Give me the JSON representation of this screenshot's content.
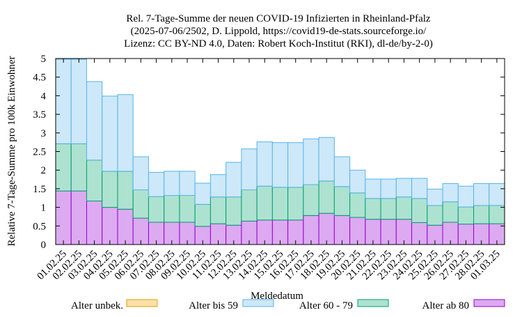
{
  "chart_data": {
    "type": "bar",
    "stacked": true,
    "title": [
      "Rel. 7-Tage-Summe der neuen COVID-19 Infizierten in Rheinland-Pfalz",
      "(2025-07-06/2502, D. Lippold, https://covid19-de-stats.sourceforge.io/",
      "Lizenz: CC BY-ND 4.0, Daten: Robert Koch-Institut (RKI), dl-de/by-2-0)"
    ],
    "xlabel": "Meldedatum",
    "ylabel": "Relative 7-Tage-Summe pro 100k Einwohner",
    "ylim": [
      0,
      5
    ],
    "yticks": [
      "0",
      "0.5",
      "1",
      "1.5",
      "2",
      "2.5",
      "3",
      "3.5",
      "4",
      "4.5",
      "5"
    ],
    "categories": [
      "01.02.25",
      "02.02.25",
      "03.02.25",
      "04.02.25",
      "05.02.25",
      "06.02.25",
      "07.02.25",
      "08.02.25",
      "09.02.25",
      "10.02.25",
      "11.02.25",
      "12.02.25",
      "13.02.25",
      "14.02.25",
      "15.02.25",
      "16.02.25",
      "17.02.25",
      "18.02.25",
      "19.02.25",
      "20.02.25",
      "21.02.25",
      "22.02.25",
      "23.02.25",
      "24.02.25",
      "25.02.25",
      "26.02.25",
      "27.02.25",
      "28.02.25",
      "01.03.25"
    ],
    "legend_position": "bottom",
    "grid": false,
    "series": [
      {
        "name": "Alter ab 80",
        "fill": "#dcaaf0",
        "stroke": "#9400d3",
        "values": [
          1.44,
          1.44,
          1.17,
          1.0,
          0.95,
          0.71,
          0.6,
          0.6,
          0.6,
          0.49,
          0.56,
          0.52,
          0.63,
          0.66,
          0.66,
          0.66,
          0.78,
          0.84,
          0.78,
          0.73,
          0.68,
          0.68,
          0.68,
          0.59,
          0.52,
          0.6,
          0.55,
          0.56,
          0.56
        ]
      },
      {
        "name": "Alter 60 - 79",
        "fill": "#aee2d0",
        "stroke": "#009e73",
        "values": [
          1.27,
          1.27,
          1.1,
          0.97,
          1.02,
          0.76,
          0.69,
          0.72,
          0.72,
          0.59,
          0.72,
          0.76,
          0.84,
          0.91,
          0.88,
          0.88,
          0.83,
          0.87,
          0.78,
          0.66,
          0.56,
          0.56,
          0.6,
          0.65,
          0.53,
          0.55,
          0.46,
          0.49,
          0.49
        ]
      },
      {
        "name": "Alter bis 59",
        "fill": "#cde8f9",
        "stroke": "#56b4e9",
        "values": [
          2.27,
          2.27,
          2.11,
          2.02,
          2.06,
          0.89,
          0.65,
          0.65,
          0.65,
          0.57,
          0.6,
          0.93,
          1.1,
          1.19,
          1.2,
          1.2,
          1.23,
          1.17,
          0.8,
          0.61,
          0.52,
          0.52,
          0.5,
          0.54,
          0.44,
          0.49,
          0.56,
          0.59,
          0.59
        ]
      },
      {
        "name": "Alter unbek.",
        "fill": "#fbe0a8",
        "stroke": "#e69f00",
        "values": [
          0,
          0,
          0,
          0,
          0,
          0,
          0,
          0,
          0,
          0,
          0,
          0,
          0,
          0,
          0,
          0,
          0,
          0,
          0,
          0,
          0,
          0,
          0,
          0,
          0,
          0,
          0,
          0,
          0
        ]
      }
    ],
    "legend_order": [
      "Alter unbek.",
      "Alter bis 59",
      "Alter 60 - 79",
      "Alter ab 80"
    ]
  }
}
